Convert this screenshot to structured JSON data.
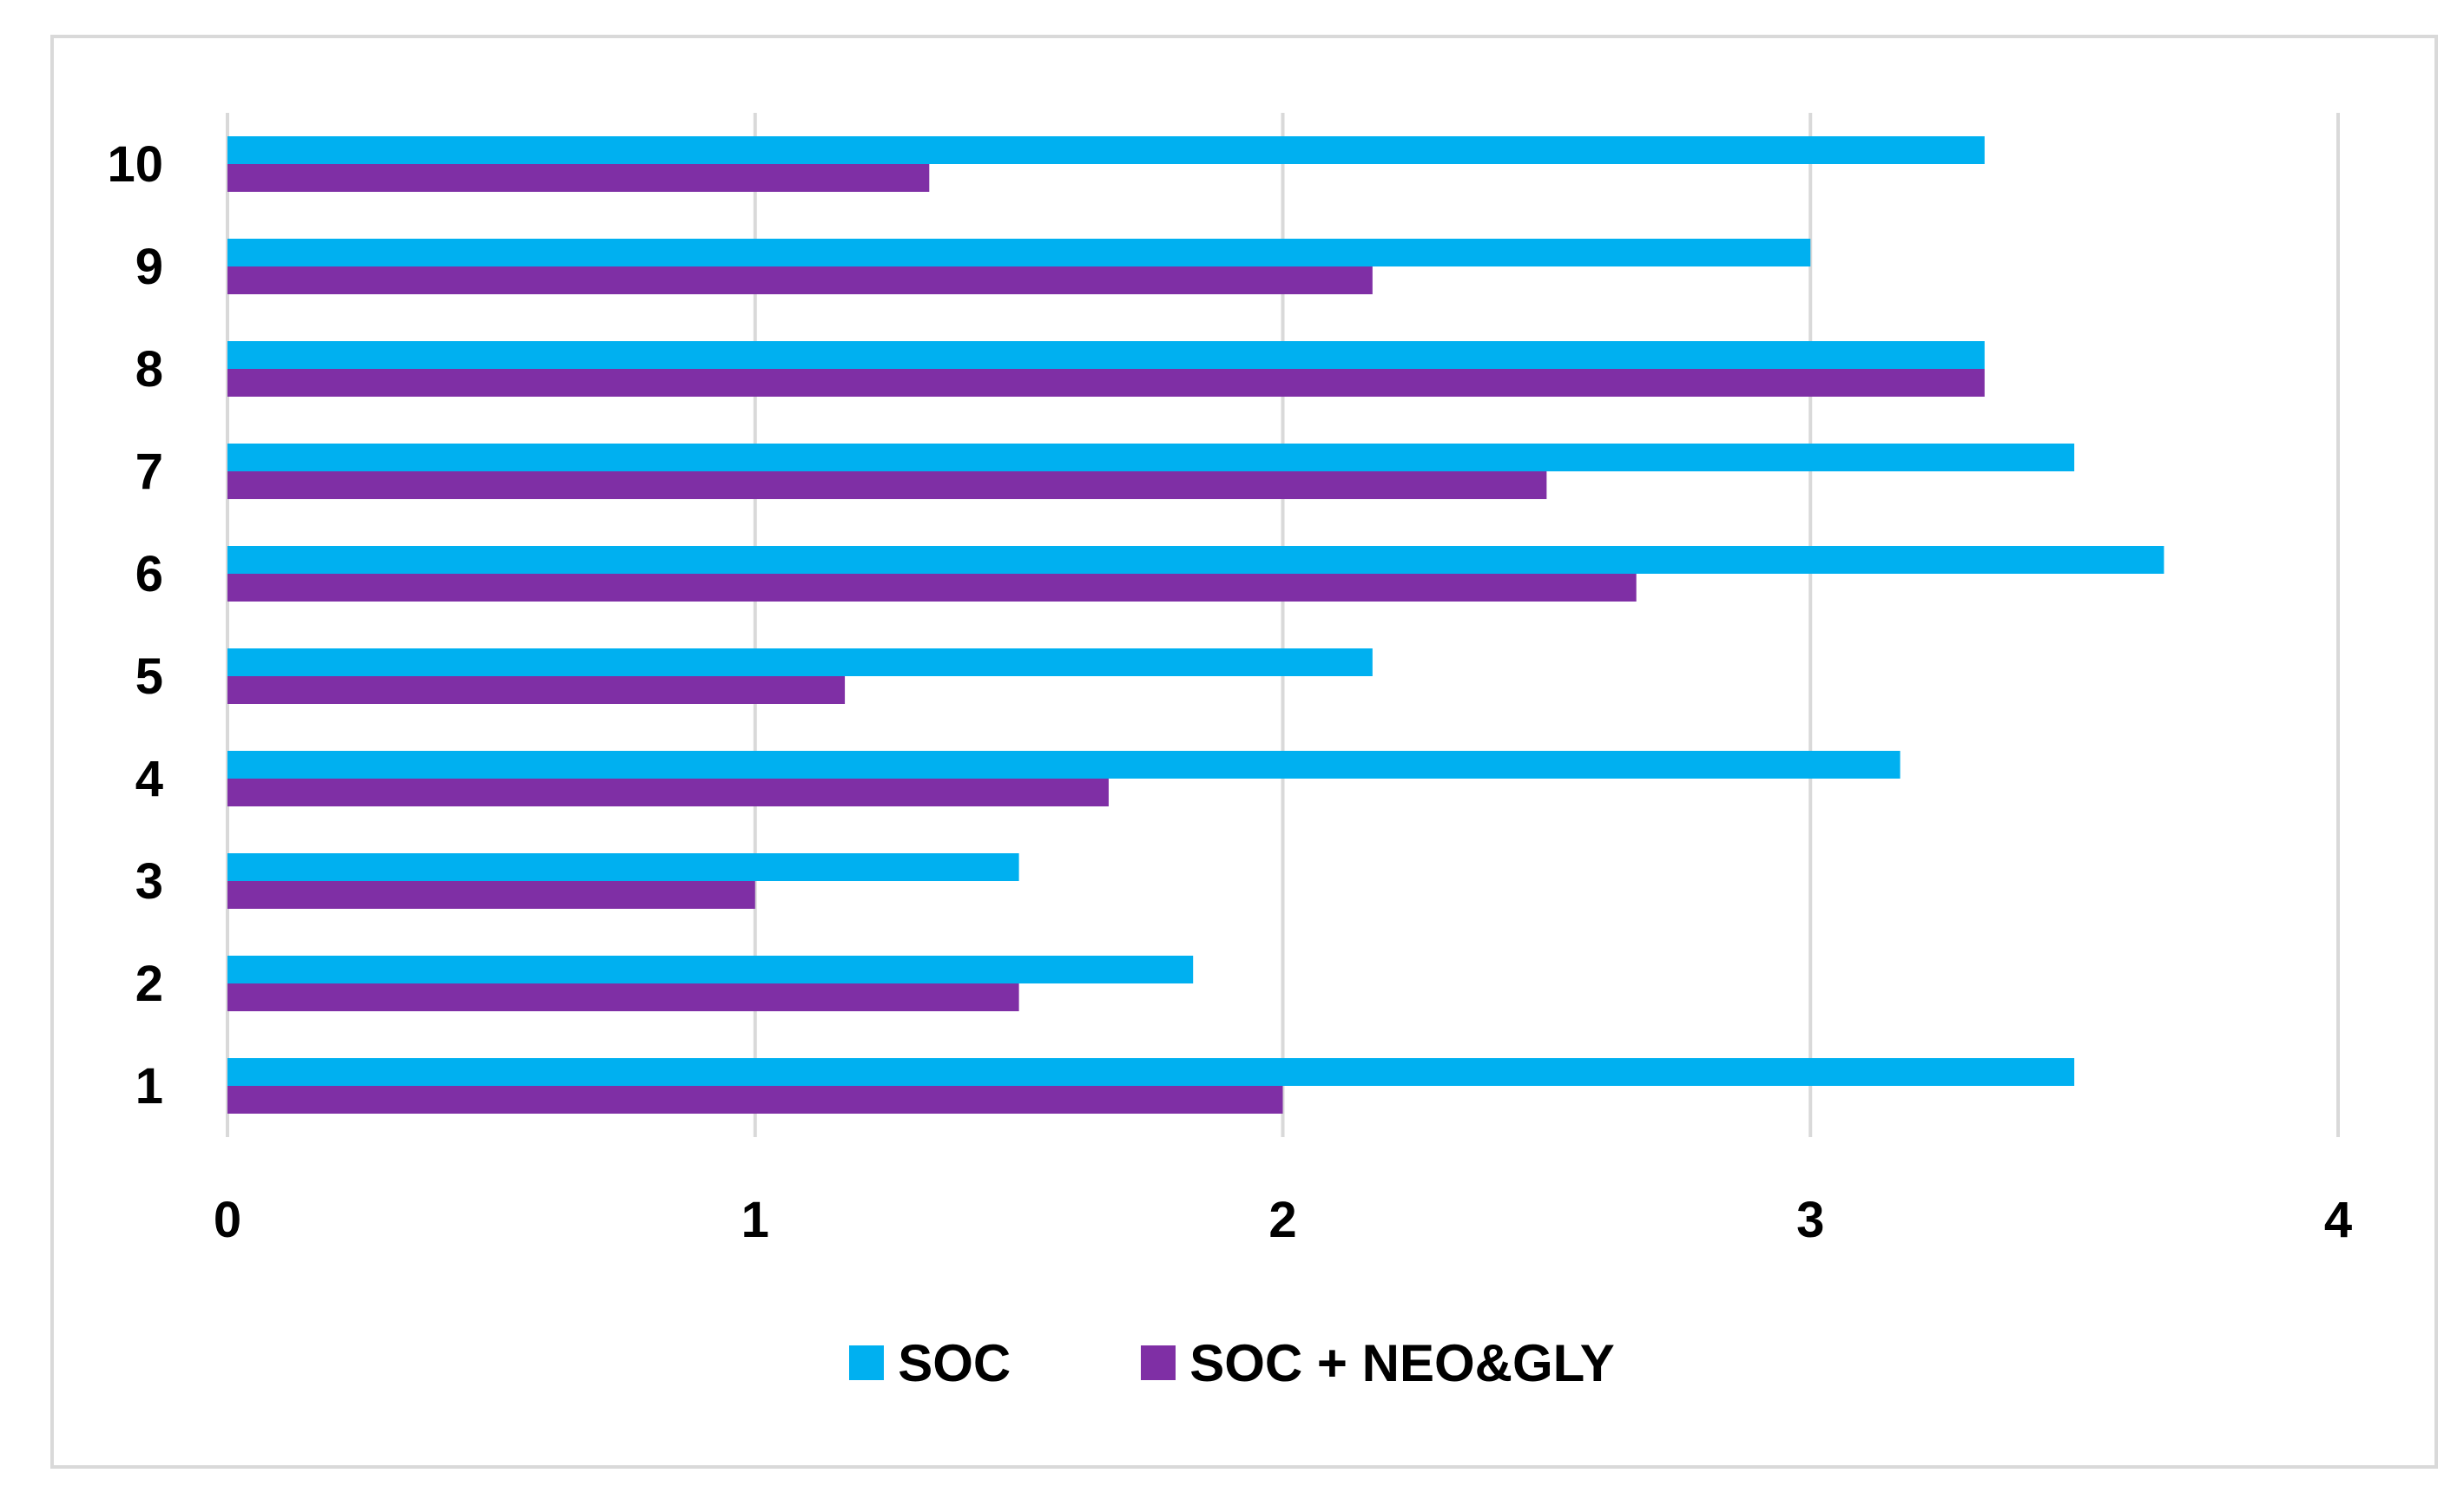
{
  "chart_data": {
    "type": "bar",
    "orientation": "horizontal",
    "categories": [
      "1",
      "2",
      "3",
      "4",
      "5",
      "6",
      "7",
      "8",
      "9",
      "10"
    ],
    "series": [
      {
        "name": "SOC",
        "color": "#00b0f0",
        "values": [
          3.5,
          1.83,
          1.5,
          3.17,
          2.17,
          3.67,
          3.5,
          3.33,
          3.0,
          3.33
        ]
      },
      {
        "name": "SOC + NEO&GLY",
        "color": "#7f2fa5",
        "values": [
          2.0,
          1.5,
          1.0,
          1.67,
          1.17,
          2.67,
          2.5,
          3.33,
          2.17,
          1.33
        ]
      }
    ],
    "xticks": [
      "0",
      "1",
      "2",
      "3",
      "4"
    ],
    "xlim": [
      0,
      4
    ],
    "grid": true,
    "legend_position": "bottom"
  },
  "colors": {
    "gridline": "#d9d9d9",
    "border": "#d9d9d9"
  }
}
